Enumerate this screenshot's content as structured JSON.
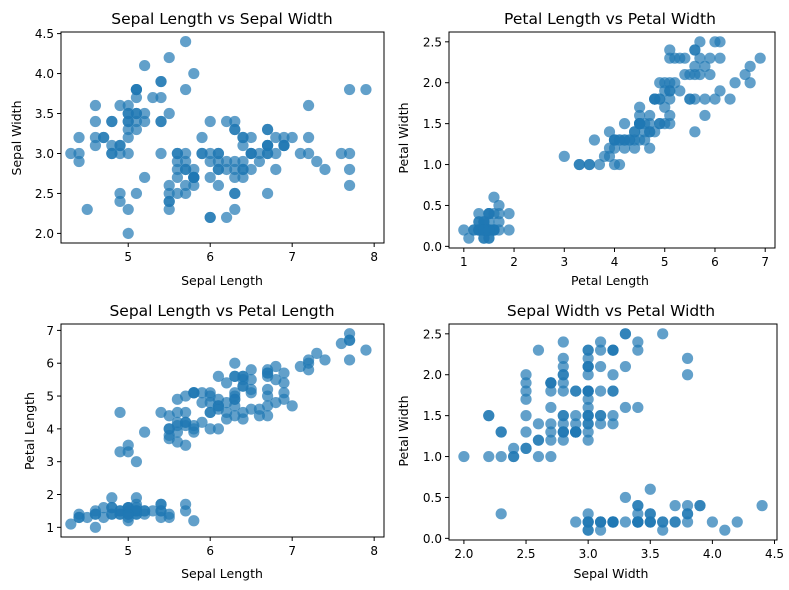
{
  "chart_data": [
    {
      "type": "scatter",
      "title": "Sepal Length vs Sepal Width",
      "xlabel": "Sepal Length",
      "ylabel": "Sepal Width",
      "color": "#1f77b4",
      "xlim": [
        4.18,
        8.12
      ],
      "ylim": [
        1.88,
        4.52
      ],
      "xticks": [
        5,
        6,
        7,
        8
      ],
      "yticks": [
        2.0,
        2.5,
        3.0,
        3.5,
        4.0,
        4.5
      ],
      "xticklabels": [
        "5",
        "6",
        "7",
        "8"
      ],
      "yticklabels": [
        "2.0",
        "2.5",
        "3.0",
        "3.5",
        "4.0",
        "4.5"
      ],
      "x": [
        5.1,
        4.9,
        4.7,
        4.6,
        5.0,
        5.4,
        4.6,
        5.0,
        4.4,
        4.9,
        5.4,
        4.8,
        4.8,
        4.3,
        5.8,
        5.7,
        5.4,
        5.1,
        5.7,
        5.1,
        5.4,
        5.1,
        4.6,
        5.1,
        4.8,
        5.0,
        5.0,
        5.2,
        5.2,
        4.7,
        4.8,
        5.4,
        5.2,
        5.5,
        4.9,
        5.0,
        5.5,
        4.9,
        4.4,
        5.1,
        5.0,
        4.5,
        4.4,
        5.0,
        5.1,
        4.8,
        5.1,
        4.6,
        5.3,
        5.0,
        7.0,
        6.4,
        6.9,
        5.5,
        6.5,
        5.7,
        6.3,
        4.9,
        6.6,
        5.2,
        5.0,
        5.9,
        6.0,
        6.1,
        5.6,
        6.7,
        5.6,
        5.8,
        6.2,
        5.6,
        5.9,
        6.1,
        6.3,
        6.1,
        6.4,
        6.6,
        6.8,
        6.7,
        6.0,
        5.7,
        5.5,
        5.5,
        5.8,
        6.0,
        5.4,
        6.0,
        6.7,
        6.3,
        5.6,
        5.5,
        5.5,
        6.1,
        5.8,
        5.0,
        5.6,
        5.7,
        5.7,
        6.2,
        5.1,
        5.7,
        6.3,
        5.8,
        7.1,
        6.3,
        6.5,
        7.6,
        4.9,
        7.3,
        6.7,
        7.2,
        6.5,
        6.4,
        6.8,
        5.7,
        5.8,
        6.4,
        6.5,
        7.7,
        7.7,
        6.0,
        6.9,
        5.6,
        7.7,
        6.3,
        6.7,
        7.2,
        6.2,
        6.1,
        6.4,
        7.2,
        7.4,
        7.9,
        6.4,
        6.3,
        6.1,
        7.7,
        6.3,
        6.4,
        6.0,
        6.9,
        6.7,
        6.9,
        5.8,
        6.8,
        6.7,
        6.7,
        6.3,
        6.5,
        6.2,
        5.9
      ],
      "y": [
        3.5,
        3.0,
        3.2,
        3.1,
        3.6,
        3.9,
        3.4,
        3.4,
        2.9,
        3.1,
        3.7,
        3.4,
        3.0,
        3.0,
        4.0,
        4.4,
        3.9,
        3.5,
        3.8,
        3.8,
        3.4,
        3.7,
        3.6,
        3.3,
        3.4,
        3.0,
        3.4,
        3.5,
        3.4,
        3.2,
        3.1,
        3.4,
        4.1,
        4.2,
        3.1,
        3.2,
        3.5,
        3.6,
        3.0,
        3.4,
        3.5,
        2.3,
        3.2,
        3.5,
        3.8,
        3.0,
        3.8,
        3.2,
        3.7,
        3.3,
        3.2,
        3.2,
        3.1,
        2.3,
        2.8,
        2.8,
        3.3,
        2.4,
        2.9,
        2.7,
        2.0,
        3.0,
        2.2,
        2.9,
        2.9,
        3.1,
        3.0,
        2.7,
        2.2,
        2.5,
        3.2,
        2.8,
        2.5,
        2.8,
        2.9,
        3.0,
        2.8,
        3.0,
        2.9,
        2.6,
        2.4,
        2.4,
        2.7,
        2.7,
        3.0,
        3.4,
        3.1,
        2.3,
        3.0,
        2.5,
        2.6,
        3.0,
        2.6,
        2.3,
        2.7,
        3.0,
        2.9,
        2.9,
        2.5,
        2.8,
        3.3,
        2.7,
        3.0,
        2.9,
        3.0,
        3.0,
        2.5,
        2.9,
        2.5,
        3.6,
        3.2,
        2.7,
        3.0,
        2.5,
        2.8,
        3.2,
        3.0,
        3.8,
        2.6,
        2.2,
        3.2,
        2.8,
        2.8,
        2.7,
        3.3,
        3.2,
        2.8,
        3.0,
        2.8,
        3.0,
        2.8,
        3.8,
        2.8,
        2.8,
        2.6,
        3.0,
        3.4,
        3.1,
        3.0,
        3.1,
        3.1,
        3.1,
        2.7,
        3.2,
        3.3,
        3.0,
        2.5,
        3.0,
        3.4,
        3.0
      ]
    },
    {
      "type": "scatter",
      "title": "Petal Length vs Petal Width",
      "xlabel": "Petal Length",
      "ylabel": "Petal Width",
      "color": "#1f77b4",
      "xlim": [
        0.705,
        7.195
      ],
      "ylim": [
        -0.02,
        2.62
      ],
      "xticks": [
        1,
        2,
        3,
        4,
        5,
        6,
        7
      ],
      "yticks": [
        0.0,
        0.5,
        1.0,
        1.5,
        2.0,
        2.5
      ],
      "xticklabels": [
        "1",
        "2",
        "3",
        "4",
        "5",
        "6",
        "7"
      ],
      "yticklabels": [
        "0.0",
        "0.5",
        "1.0",
        "1.5",
        "2.0",
        "2.5"
      ],
      "x": [
        1.4,
        1.4,
        1.3,
        1.5,
        1.4,
        1.7,
        1.4,
        1.5,
        1.4,
        1.5,
        1.5,
        1.6,
        1.4,
        1.1,
        1.2,
        1.5,
        1.3,
        1.4,
        1.7,
        1.5,
        1.7,
        1.5,
        1.0,
        1.7,
        1.9,
        1.6,
        1.6,
        1.5,
        1.4,
        1.6,
        1.6,
        1.5,
        1.5,
        1.4,
        1.5,
        1.2,
        1.3,
        1.4,
        1.3,
        1.5,
        1.3,
        1.3,
        1.3,
        1.6,
        1.9,
        1.4,
        1.6,
        1.4,
        1.5,
        1.4,
        4.7,
        4.5,
        4.9,
        4.0,
        4.6,
        4.5,
        4.7,
        3.3,
        4.6,
        3.9,
        3.5,
        4.2,
        4.0,
        4.7,
        3.6,
        4.4,
        4.5,
        4.1,
        4.5,
        3.9,
        4.8,
        4.0,
        4.9,
        4.7,
        4.3,
        4.4,
        4.8,
        5.0,
        4.5,
        3.5,
        3.8,
        3.7,
        3.9,
        5.1,
        4.5,
        4.5,
        4.7,
        4.4,
        4.1,
        4.0,
        4.4,
        4.6,
        4.0,
        3.3,
        4.2,
        4.2,
        4.2,
        4.3,
        3.0,
        4.1,
        6.0,
        5.1,
        5.9,
        5.6,
        5.8,
        6.6,
        4.5,
        6.3,
        5.8,
        6.1,
        5.1,
        5.3,
        5.5,
        5.0,
        5.1,
        5.3,
        5.5,
        6.7,
        6.9,
        5.0,
        5.7,
        4.9,
        6.7,
        4.9,
        5.7,
        6.0,
        4.8,
        4.9,
        5.6,
        5.8,
        6.1,
        6.4,
        5.6,
        5.1,
        5.6,
        6.1,
        5.6,
        5.5,
        4.8,
        5.4,
        5.6,
        5.1,
        5.1,
        5.9,
        5.7,
        5.2,
        5.0,
        5.2,
        5.4,
        5.1
      ],
      "y": [
        0.2,
        0.2,
        0.2,
        0.2,
        0.2,
        0.4,
        0.3,
        0.2,
        0.2,
        0.1,
        0.2,
        0.2,
        0.1,
        0.1,
        0.2,
        0.4,
        0.4,
        0.3,
        0.3,
        0.3,
        0.2,
        0.4,
        0.2,
        0.5,
        0.2,
        0.2,
        0.4,
        0.2,
        0.2,
        0.2,
        0.2,
        0.4,
        0.1,
        0.2,
        0.2,
        0.2,
        0.2,
        0.1,
        0.2,
        0.2,
        0.3,
        0.3,
        0.2,
        0.6,
        0.4,
        0.3,
        0.2,
        0.2,
        0.2,
        0.2,
        1.4,
        1.5,
        1.5,
        1.3,
        1.5,
        1.3,
        1.6,
        1.0,
        1.3,
        1.4,
        1.0,
        1.5,
        1.0,
        1.4,
        1.3,
        1.4,
        1.5,
        1.0,
        1.5,
        1.1,
        1.8,
        1.3,
        1.5,
        1.2,
        1.3,
        1.4,
        1.4,
        1.7,
        1.5,
        1.0,
        1.1,
        1.0,
        1.2,
        1.6,
        1.5,
        1.6,
        1.5,
        1.3,
        1.3,
        1.3,
        1.2,
        1.4,
        1.2,
        1.0,
        1.3,
        1.2,
        1.3,
        1.3,
        1.1,
        1.3,
        2.5,
        1.9,
        2.1,
        1.8,
        2.2,
        2.1,
        1.7,
        1.8,
        1.8,
        2.5,
        2.0,
        1.9,
        2.1,
        2.0,
        2.4,
        2.3,
        1.8,
        2.2,
        2.3,
        1.5,
        2.3,
        2.0,
        2.0,
        1.8,
        2.1,
        1.8,
        1.8,
        1.8,
        2.1,
        1.6,
        1.9,
        2.0,
        2.2,
        1.5,
        1.4,
        2.3,
        2.4,
        1.8,
        1.8,
        2.1,
        2.4,
        2.3,
        1.9,
        2.3,
        2.5,
        2.3,
        1.9,
        2.0,
        2.3,
        1.8
      ]
    },
    {
      "type": "scatter",
      "title": "Sepal Length vs Petal Length",
      "xlabel": "Sepal Length",
      "ylabel": "Petal Length",
      "color": "#1f77b4",
      "xlim": [
        4.18,
        8.12
      ],
      "ylim": [
        0.705,
        7.195
      ],
      "xticks": [
        5,
        6,
        7,
        8
      ],
      "yticks": [
        1,
        2,
        3,
        4,
        5,
        6,
        7
      ],
      "xticklabels": [
        "5",
        "6",
        "7",
        "8"
      ],
      "yticklabels": [
        "1",
        "2",
        "3",
        "4",
        "5",
        "6",
        "7"
      ],
      "x": [
        5.1,
        4.9,
        4.7,
        4.6,
        5.0,
        5.4,
        4.6,
        5.0,
        4.4,
        4.9,
        5.4,
        4.8,
        4.8,
        4.3,
        5.8,
        5.7,
        5.4,
        5.1,
        5.7,
        5.1,
        5.4,
        5.1,
        4.6,
        5.1,
        4.8,
        5.0,
        5.0,
        5.2,
        5.2,
        4.7,
        4.8,
        5.4,
        5.2,
        5.5,
        4.9,
        5.0,
        5.5,
        4.9,
        4.4,
        5.1,
        5.0,
        4.5,
        4.4,
        5.0,
        5.1,
        4.8,
        5.1,
        4.6,
        5.3,
        5.0,
        7.0,
        6.4,
        6.9,
        5.5,
        6.5,
        5.7,
        6.3,
        4.9,
        6.6,
        5.2,
        5.0,
        5.9,
        6.0,
        6.1,
        5.6,
        6.7,
        5.6,
        5.8,
        6.2,
        5.6,
        5.9,
        6.1,
        6.3,
        6.1,
        6.4,
        6.6,
        6.8,
        6.7,
        6.0,
        5.7,
        5.5,
        5.5,
        5.8,
        6.0,
        5.4,
        6.0,
        6.7,
        6.3,
        5.6,
        5.5,
        5.5,
        6.1,
        5.8,
        5.0,
        5.6,
        5.7,
        5.7,
        6.2,
        5.1,
        5.7,
        6.3,
        5.8,
        7.1,
        6.3,
        6.5,
        7.6,
        4.9,
        7.3,
        6.7,
        7.2,
        6.5,
        6.4,
        6.8,
        5.7,
        5.8,
        6.4,
        6.5,
        7.7,
        7.7,
        6.0,
        6.9,
        5.6,
        7.7,
        6.3,
        6.7,
        7.2,
        6.2,
        6.1,
        6.4,
        7.2,
        7.4,
        7.9,
        6.4,
        6.3,
        6.1,
        7.7,
        6.3,
        6.4,
        6.0,
        6.9,
        6.7,
        6.9,
        5.8,
        6.8,
        6.7,
        6.7,
        6.3,
        6.5,
        6.2,
        5.9
      ],
      "y": [
        1.4,
        1.4,
        1.3,
        1.5,
        1.4,
        1.7,
        1.4,
        1.5,
        1.4,
        1.5,
        1.5,
        1.6,
        1.4,
        1.1,
        1.2,
        1.5,
        1.3,
        1.4,
        1.7,
        1.5,
        1.7,
        1.5,
        1.0,
        1.7,
        1.9,
        1.6,
        1.6,
        1.5,
        1.4,
        1.6,
        1.6,
        1.5,
        1.5,
        1.4,
        1.5,
        1.2,
        1.3,
        1.4,
        1.3,
        1.5,
        1.3,
        1.3,
        1.3,
        1.6,
        1.9,
        1.4,
        1.6,
        1.4,
        1.5,
        1.4,
        4.7,
        4.5,
        4.9,
        4.0,
        4.6,
        4.5,
        4.7,
        3.3,
        4.6,
        3.9,
        3.5,
        4.2,
        4.0,
        4.7,
        3.6,
        4.4,
        4.5,
        4.1,
        4.5,
        3.9,
        4.8,
        4.0,
        4.9,
        4.7,
        4.3,
        4.4,
        4.8,
        5.0,
        4.5,
        3.5,
        3.8,
        3.7,
        3.9,
        5.1,
        4.5,
        4.5,
        4.7,
        4.4,
        4.1,
        4.0,
        4.4,
        4.6,
        4.0,
        3.3,
        4.2,
        4.2,
        4.2,
        4.3,
        3.0,
        4.1,
        6.0,
        5.1,
        5.9,
        5.6,
        5.8,
        6.6,
        4.5,
        6.3,
        5.8,
        6.1,
        5.1,
        5.3,
        5.5,
        5.0,
        5.1,
        5.3,
        5.5,
        6.7,
        6.9,
        5.0,
        5.7,
        4.9,
        6.7,
        4.9,
        5.7,
        6.0,
        4.8,
        4.9,
        5.6,
        5.8,
        6.1,
        6.4,
        5.6,
        5.1,
        5.6,
        6.1,
        5.6,
        5.5,
        4.8,
        5.4,
        5.6,
        5.1,
        5.1,
        5.9,
        5.7,
        5.2,
        5.0,
        5.2,
        5.4,
        5.1
      ]
    },
    {
      "type": "scatter",
      "title": "Sepal Width vs Petal Width",
      "xlabel": "Sepal Width",
      "ylabel": "Petal Width",
      "color": "#1f77b4",
      "xlim": [
        1.88,
        4.52
      ],
      "ylim": [
        -0.02,
        2.62
      ],
      "xticks": [
        2.0,
        2.5,
        3.0,
        3.5,
        4.0,
        4.5
      ],
      "yticks": [
        0.0,
        0.5,
        1.0,
        1.5,
        2.0,
        2.5
      ],
      "xticklabels": [
        "2.0",
        "2.5",
        "3.0",
        "3.5",
        "4.0",
        "4.5"
      ],
      "yticklabels": [
        "0.0",
        "0.5",
        "1.0",
        "1.5",
        "2.0",
        "2.5"
      ],
      "x": [
        3.5,
        3.0,
        3.2,
        3.1,
        3.6,
        3.9,
        3.4,
        3.4,
        2.9,
        3.1,
        3.7,
        3.4,
        3.0,
        3.0,
        4.0,
        4.4,
        3.9,
        3.5,
        3.8,
        3.8,
        3.4,
        3.7,
        3.6,
        3.3,
        3.4,
        3.0,
        3.4,
        3.5,
        3.4,
        3.2,
        3.1,
        3.4,
        4.1,
        4.2,
        3.1,
        3.2,
        3.5,
        3.6,
        3.0,
        3.4,
        3.5,
        2.3,
        3.2,
        3.5,
        3.8,
        3.0,
        3.8,
        3.2,
        3.7,
        3.3,
        3.2,
        3.2,
        3.1,
        2.3,
        2.8,
        2.8,
        3.3,
        2.4,
        2.9,
        2.7,
        2.0,
        3.0,
        2.2,
        2.9,
        2.9,
        3.1,
        3.0,
        2.7,
        2.2,
        2.5,
        3.2,
        2.8,
        2.5,
        2.8,
        2.9,
        3.0,
        2.8,
        3.0,
        2.9,
        2.6,
        2.4,
        2.4,
        2.7,
        2.7,
        3.0,
        3.4,
        3.1,
        2.3,
        3.0,
        2.5,
        2.6,
        3.0,
        2.6,
        2.3,
        2.7,
        3.0,
        2.9,
        2.9,
        2.5,
        2.8,
        3.3,
        2.7,
        3.0,
        2.9,
        3.0,
        3.0,
        2.5,
        2.9,
        2.5,
        3.6,
        3.2,
        2.7,
        3.0,
        2.5,
        2.8,
        3.2,
        3.0,
        3.8,
        2.6,
        2.2,
        3.2,
        2.8,
        2.8,
        2.7,
        3.3,
        3.2,
        2.8,
        3.0,
        2.8,
        3.0,
        2.8,
        3.8,
        2.8,
        2.8,
        2.6,
        3.0,
        3.4,
        3.1,
        3.0,
        3.1,
        3.1,
        3.1,
        2.7,
        3.2,
        3.3,
        3.0,
        2.5,
        3.0,
        3.4,
        3.0
      ],
      "y": [
        0.2,
        0.2,
        0.2,
        0.2,
        0.2,
        0.4,
        0.3,
        0.2,
        0.2,
        0.1,
        0.2,
        0.2,
        0.1,
        0.1,
        0.2,
        0.4,
        0.4,
        0.3,
        0.3,
        0.3,
        0.2,
        0.4,
        0.2,
        0.5,
        0.2,
        0.2,
        0.4,
        0.2,
        0.2,
        0.2,
        0.2,
        0.4,
        0.1,
        0.2,
        0.2,
        0.2,
        0.2,
        0.1,
        0.2,
        0.2,
        0.3,
        0.3,
        0.2,
        0.6,
        0.4,
        0.3,
        0.2,
        0.2,
        0.2,
        0.2,
        1.4,
        1.5,
        1.5,
        1.3,
        1.5,
        1.3,
        1.6,
        1.0,
        1.3,
        1.4,
        1.0,
        1.5,
        1.0,
        1.4,
        1.3,
        1.4,
        1.5,
        1.0,
        1.5,
        1.1,
        1.8,
        1.3,
        1.5,
        1.2,
        1.3,
        1.4,
        1.4,
        1.7,
        1.5,
        1.0,
        1.1,
        1.0,
        1.2,
        1.6,
        1.5,
        1.6,
        1.5,
        1.3,
        1.3,
        1.3,
        1.2,
        1.4,
        1.2,
        1.0,
        1.3,
        1.2,
        1.3,
        1.3,
        1.1,
        1.3,
        2.5,
        1.9,
        2.1,
        1.8,
        2.2,
        2.1,
        1.7,
        1.8,
        1.8,
        2.5,
        2.0,
        1.9,
        2.1,
        2.0,
        2.4,
        2.3,
        1.8,
        2.2,
        2.3,
        1.5,
        2.3,
        2.0,
        2.0,
        1.8,
        2.1,
        1.8,
        1.8,
        1.8,
        2.1,
        1.6,
        1.9,
        2.0,
        2.2,
        1.5,
        1.4,
        2.3,
        2.4,
        1.8,
        1.8,
        2.1,
        2.4,
        2.3,
        1.9,
        2.3,
        2.5,
        2.3,
        1.9,
        2.0,
        2.3,
        1.8
      ]
    }
  ]
}
